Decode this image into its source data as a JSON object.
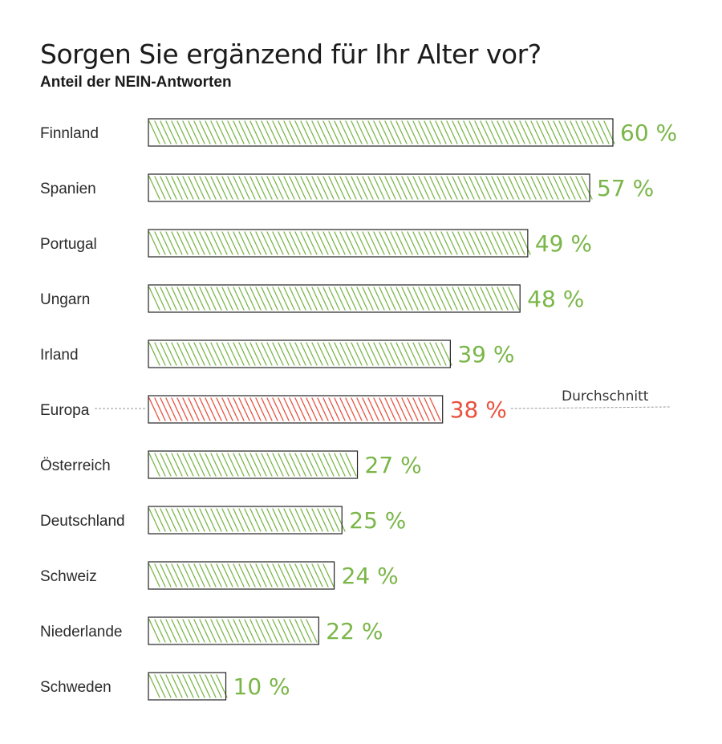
{
  "chart_data": {
    "type": "bar",
    "orientation": "horizontal",
    "title": "Sorgen Sie ergänzend für Ihr Alter vor?",
    "subtitle": "Anteil der NEIN-Antworten",
    "categories": [
      "Finnland",
      "Spanien",
      "Portugal",
      "Ungarn",
      "Irland",
      "Europa",
      "Österreich",
      "Deutschland",
      "Schweiz",
      "Niederlande",
      "Schweden"
    ],
    "values": [
      60,
      57,
      49,
      48,
      39,
      38,
      27,
      25,
      24,
      22,
      10
    ],
    "value_labels": [
      "60 %",
      "57 %",
      "49 %",
      "48 %",
      "39 %",
      "38 %",
      "27 %",
      "25 %",
      "24 %",
      "22 %",
      "10 %"
    ],
    "highlight_category": "Europa",
    "average_label": "Durchschnitt",
    "xlim": [
      0,
      60
    ],
    "colors": {
      "bar": "#7ab648",
      "highlight": "#e8523f",
      "outline": "#222222"
    }
  }
}
